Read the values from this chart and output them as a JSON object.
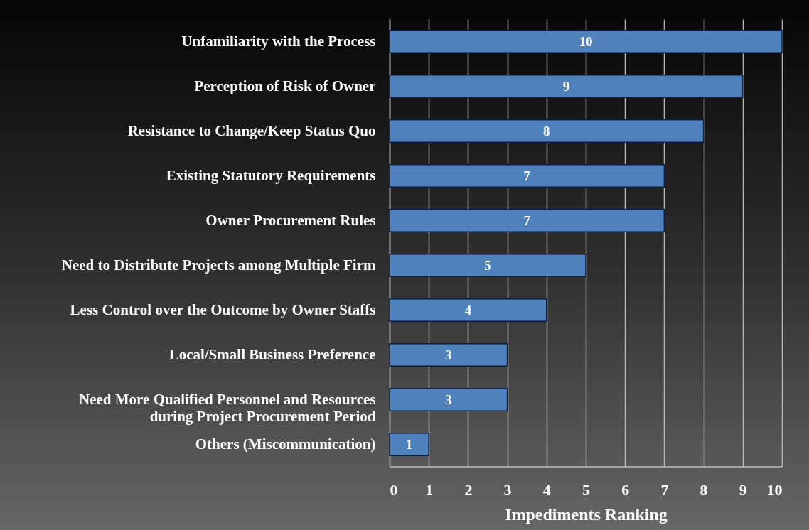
{
  "chart_data": {
    "type": "bar",
    "orientation": "horizontal",
    "categories": [
      "Unfamiliarity with the Process",
      "Perception of Risk of Owner",
      "Resistance to Change/Keep Status Quo",
      "Existing Statutory Requirements",
      "Owner Procurement Rules",
      "Need to Distribute Projects among Multiple Firm",
      "Less Control over the Outcome by Owner Staffs",
      "Local/Small Business Preference",
      "Need More Qualified Personnel and Resources during Project Procurement Period",
      "Others (Miscommunication)"
    ],
    "values": [
      10,
      9,
      8,
      7,
      7,
      5,
      4,
      3,
      3,
      1
    ],
    "color": "#4f81bd",
    "xlim": [
      0,
      10
    ],
    "xticks": [
      0,
      1,
      2,
      3,
      4,
      5,
      6,
      7,
      8,
      9,
      10
    ],
    "xlabel": "Impediments Ranking",
    "grid": "x",
    "data_labels": true
  }
}
